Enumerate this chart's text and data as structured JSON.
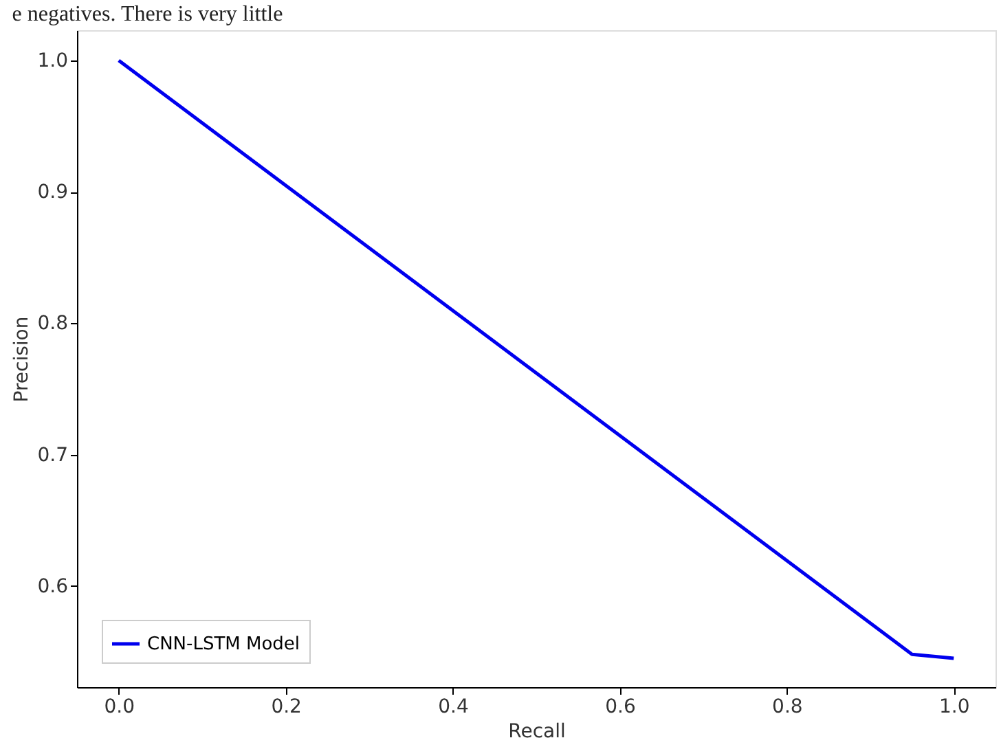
{
  "chart_data": {
    "type": "line",
    "xlabel": "Recall",
    "ylabel": "Precision",
    "annotations": [
      "e negatives. There is very little"
    ],
    "series": [
      {
        "name": "CNN-LSTM Model",
        "color": "#0000ee",
        "x": [
          0.0,
          0.95,
          1.0
        ],
        "values": [
          1.0,
          0.548,
          0.545
        ]
      }
    ],
    "xlim": [
      -0.05,
      1.05
    ],
    "xticks": [
      {
        "value": 0,
        "label": "0.0"
      },
      0.2,
      0.4,
      0.6,
      0.8,
      {
        "value": 1,
        "label": "1.0"
      }
    ],
    "ylim": [
      0.523,
      1.023
    ],
    "yticks": [
      0.6,
      0.7,
      0.8,
      0.9,
      {
        "value": 1,
        "label": "1.0"
      }
    ],
    "grid": false,
    "legend": "bottom left",
    "marker": "none",
    "line_style": "solid"
  }
}
